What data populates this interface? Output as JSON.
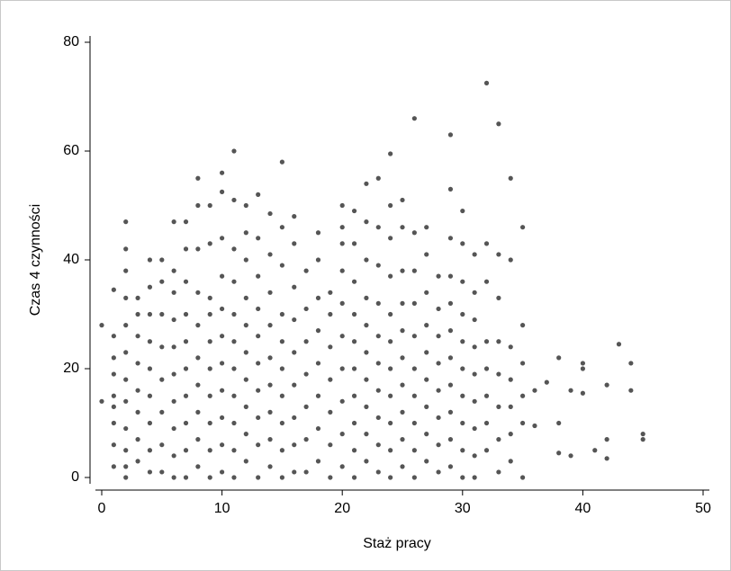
{
  "chart_data": {
    "type": "scatter",
    "xlabel": "Staż pracy",
    "ylabel": "Czas 4 czynności",
    "xlim": [
      0,
      50
    ],
    "ylim": [
      0,
      80
    ],
    "xticks": [
      0,
      10,
      20,
      30,
      40,
      50
    ],
    "yticks": [
      0,
      20,
      40,
      60,
      80
    ],
    "grid": false,
    "color": "#555555",
    "x": [
      0,
      0,
      1,
      1,
      1,
      1,
      1,
      1,
      1,
      1,
      1,
      2,
      2,
      2,
      2,
      2,
      2,
      2,
      2,
      2,
      2,
      2,
      2,
      3,
      3,
      3,
      3,
      3,
      3,
      3,
      3,
      4,
      4,
      4,
      4,
      4,
      4,
      4,
      4,
      4,
      5,
      5,
      5,
      5,
      5,
      5,
      5,
      5,
      6,
      6,
      6,
      6,
      6,
      6,
      6,
      6,
      6,
      6,
      7,
      7,
      7,
      7,
      7,
      7,
      7,
      7,
      7,
      7,
      8,
      8,
      8,
      8,
      8,
      8,
      8,
      8,
      8,
      8,
      9,
      9,
      9,
      9,
      9,
      9,
      9,
      9,
      9,
      9,
      10,
      10,
      10,
      10,
      10,
      10,
      10,
      10,
      10,
      10,
      10,
      11,
      11,
      11,
      11,
      11,
      11,
      11,
      11,
      11,
      11,
      11,
      12,
      12,
      12,
      12,
      12,
      12,
      12,
      12,
      12,
      12,
      13,
      13,
      13,
      13,
      13,
      13,
      13,
      13,
      13,
      13,
      14,
      14,
      14,
      14,
      14,
      14,
      14,
      14,
      14,
      15,
      15,
      15,
      15,
      15,
      15,
      15,
      15,
      15,
      15,
      16,
      16,
      16,
      16,
      16,
      16,
      16,
      16,
      16,
      17,
      17,
      17,
      17,
      17,
      17,
      17,
      18,
      18,
      18,
      18,
      18,
      18,
      18,
      18,
      19,
      19,
      19,
      19,
      19,
      19,
      19,
      20,
      20,
      20,
      20,
      20,
      20,
      20,
      20,
      20,
      20,
      21,
      21,
      21,
      21,
      21,
      21,
      21,
      21,
      21,
      21,
      22,
      22,
      22,
      22,
      22,
      22,
      22,
      22,
      22,
      22,
      23,
      23,
      23,
      23,
      23,
      23,
      23,
      23,
      23,
      23,
      24,
      24,
      24,
      24,
      24,
      24,
      24,
      24,
      24,
      24,
      24,
      25,
      25,
      25,
      25,
      25,
      25,
      25,
      25,
      25,
      25,
      26,
      26,
      26,
      26,
      26,
      26,
      26,
      26,
      26,
      26,
      27,
      27,
      27,
      27,
      27,
      27,
      27,
      27,
      27,
      28,
      28,
      28,
      28,
      28,
      28,
      28,
      28,
      29,
      29,
      29,
      29,
      29,
      29,
      29,
      29,
      29,
      29,
      29,
      30,
      30,
      30,
      30,
      30,
      30,
      30,
      30,
      30,
      30,
      31,
      31,
      31,
      31,
      31,
      31,
      31,
      31,
      31,
      32,
      32,
      32,
      32,
      32,
      32,
      32,
      32,
      33,
      33,
      33,
      33,
      33,
      33,
      33,
      33,
      34,
      34,
      34,
      34,
      34,
      34,
      34,
      35,
      35,
      35,
      35,
      35,
      35,
      36,
      36,
      37,
      38,
      38,
      38,
      39,
      39,
      40,
      40,
      40,
      41,
      42,
      42,
      42,
      43,
      44,
      44,
      45,
      45
    ],
    "y": [
      28,
      14,
      2,
      6,
      13,
      19,
      22,
      26,
      34.5,
      10,
      15,
      0,
      2,
      5,
      9,
      14,
      18,
      23,
      28,
      33,
      38,
      42,
      47,
      3,
      7,
      12,
      16,
      21,
      26,
      30,
      33,
      1,
      5,
      10,
      15,
      20,
      25,
      30,
      35,
      40,
      1,
      6,
      12,
      18,
      24,
      30,
      36,
      40,
      0,
      4,
      9,
      14,
      19,
      24,
      29,
      34,
      38,
      47,
      0,
      5,
      10,
      15,
      20,
      25,
      30,
      36,
      42,
      47,
      2,
      7,
      12,
      17,
      22,
      28,
      34,
      42,
      50,
      55,
      0,
      5,
      10,
      15,
      20,
      25,
      30,
      33,
      43,
      50,
      1,
      6,
      11,
      16,
      21,
      26,
      31,
      37,
      44,
      52.5,
      56,
      0,
      5,
      10,
      15,
      20,
      25,
      30,
      36,
      42,
      51,
      60,
      3,
      8,
      13,
      18,
      23,
      28,
      33,
      40,
      45,
      50,
      0,
      6,
      11,
      16,
      21,
      26,
      31,
      37,
      44,
      52,
      2,
      7,
      12,
      17,
      22,
      28,
      34,
      41,
      48.5,
      0,
      5,
      10,
      15,
      20,
      25,
      30,
      39,
      46,
      58,
      1,
      6,
      11,
      17,
      23,
      29,
      35,
      43,
      48,
      1,
      7,
      13,
      19,
      25,
      31,
      38,
      3,
      9,
      15,
      21,
      27,
      33,
      40,
      45,
      0,
      6,
      12,
      18,
      24,
      30,
      34,
      2,
      8,
      14,
      20,
      26,
      32,
      38,
      43,
      46,
      50,
      0,
      5,
      10,
      15,
      20,
      25,
      30,
      36,
      43,
      49,
      3,
      8,
      13,
      18,
      23,
      28,
      33,
      40,
      47,
      54,
      1,
      6,
      11,
      16,
      21,
      26,
      32,
      39,
      46,
      55,
      0,
      5,
      10,
      15,
      20,
      25,
      30,
      37,
      44,
      50,
      59.5,
      2,
      7,
      12,
      17,
      22,
      27,
      32,
      38,
      46,
      51,
      0,
      5,
      10,
      15,
      20,
      26,
      32,
      38,
      45,
      66,
      3,
      8,
      13,
      18,
      23,
      28,
      34,
      41,
      46,
      1,
      6,
      11,
      16,
      21,
      26,
      31,
      37,
      2,
      7,
      12,
      17,
      22,
      27,
      32,
      37,
      44,
      53,
      63,
      0,
      5,
      10,
      15,
      20,
      25,
      30,
      36,
      43,
      49,
      0,
      4,
      9,
      14,
      19,
      24,
      29,
      34,
      41,
      5,
      10,
      15,
      20,
      25,
      36,
      43,
      72.5,
      1,
      7,
      13,
      19,
      25,
      33,
      41,
      65,
      3,
      8,
      13,
      18,
      24,
      40,
      55,
      0,
      10,
      15,
      21,
      28,
      46,
      9.5,
      16,
      17.5,
      4.5,
      10,
      22,
      4,
      16,
      15.5,
      20,
      21,
      5,
      3.5,
      7,
      17,
      24.5,
      16,
      21,
      7,
      8
    ]
  }
}
